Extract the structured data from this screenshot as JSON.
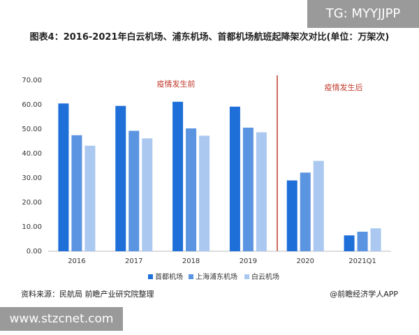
{
  "chart_data": {
    "type": "bar",
    "title": "图表4：2016-2021年白云机场、浦东机场、首都机场航班起降架次对比(单位：万架次)",
    "categories": [
      "2016",
      "2017",
      "2018",
      "2019",
      "2020",
      "2021Q1"
    ],
    "series": [
      {
        "name": "首都机场",
        "color": "#1f6fd9",
        "values": [
          60.5,
          59.5,
          61.2,
          59.2,
          29.0,
          6.5
        ]
      },
      {
        "name": "上海浦东机场",
        "color": "#5b94e0",
        "values": [
          47.5,
          49.3,
          50.3,
          50.6,
          32.2,
          8.0
        ]
      },
      {
        "name": "白云机场",
        "color": "#aac8f0",
        "values": [
          43.2,
          46.2,
          47.3,
          48.7,
          37.0,
          9.4
        ]
      }
    ],
    "ylim": [
      0,
      70
    ],
    "yticks": [
      {
        "value": 0,
        "label": "0.00"
      },
      {
        "value": 10,
        "label": "10.00"
      },
      {
        "value": 20,
        "label": "20.00"
      },
      {
        "value": 30,
        "label": "30.00"
      },
      {
        "value": 40,
        "label": "40.00"
      },
      {
        "value": 50,
        "label": "50.00"
      },
      {
        "value": 60,
        "label": "60.00"
      },
      {
        "value": 70,
        "label": "70.00"
      }
    ],
    "annotations": [
      "疫情发生前",
      "疫情发生后"
    ],
    "legend": "bottom",
    "source": "资料来源：民航局 前瞻产业研究院整理",
    "credit": "@前瞻经济学人APP"
  },
  "watermarks": [
    "TG: MYYJJPP",
    "www.stzcnet.com"
  ]
}
